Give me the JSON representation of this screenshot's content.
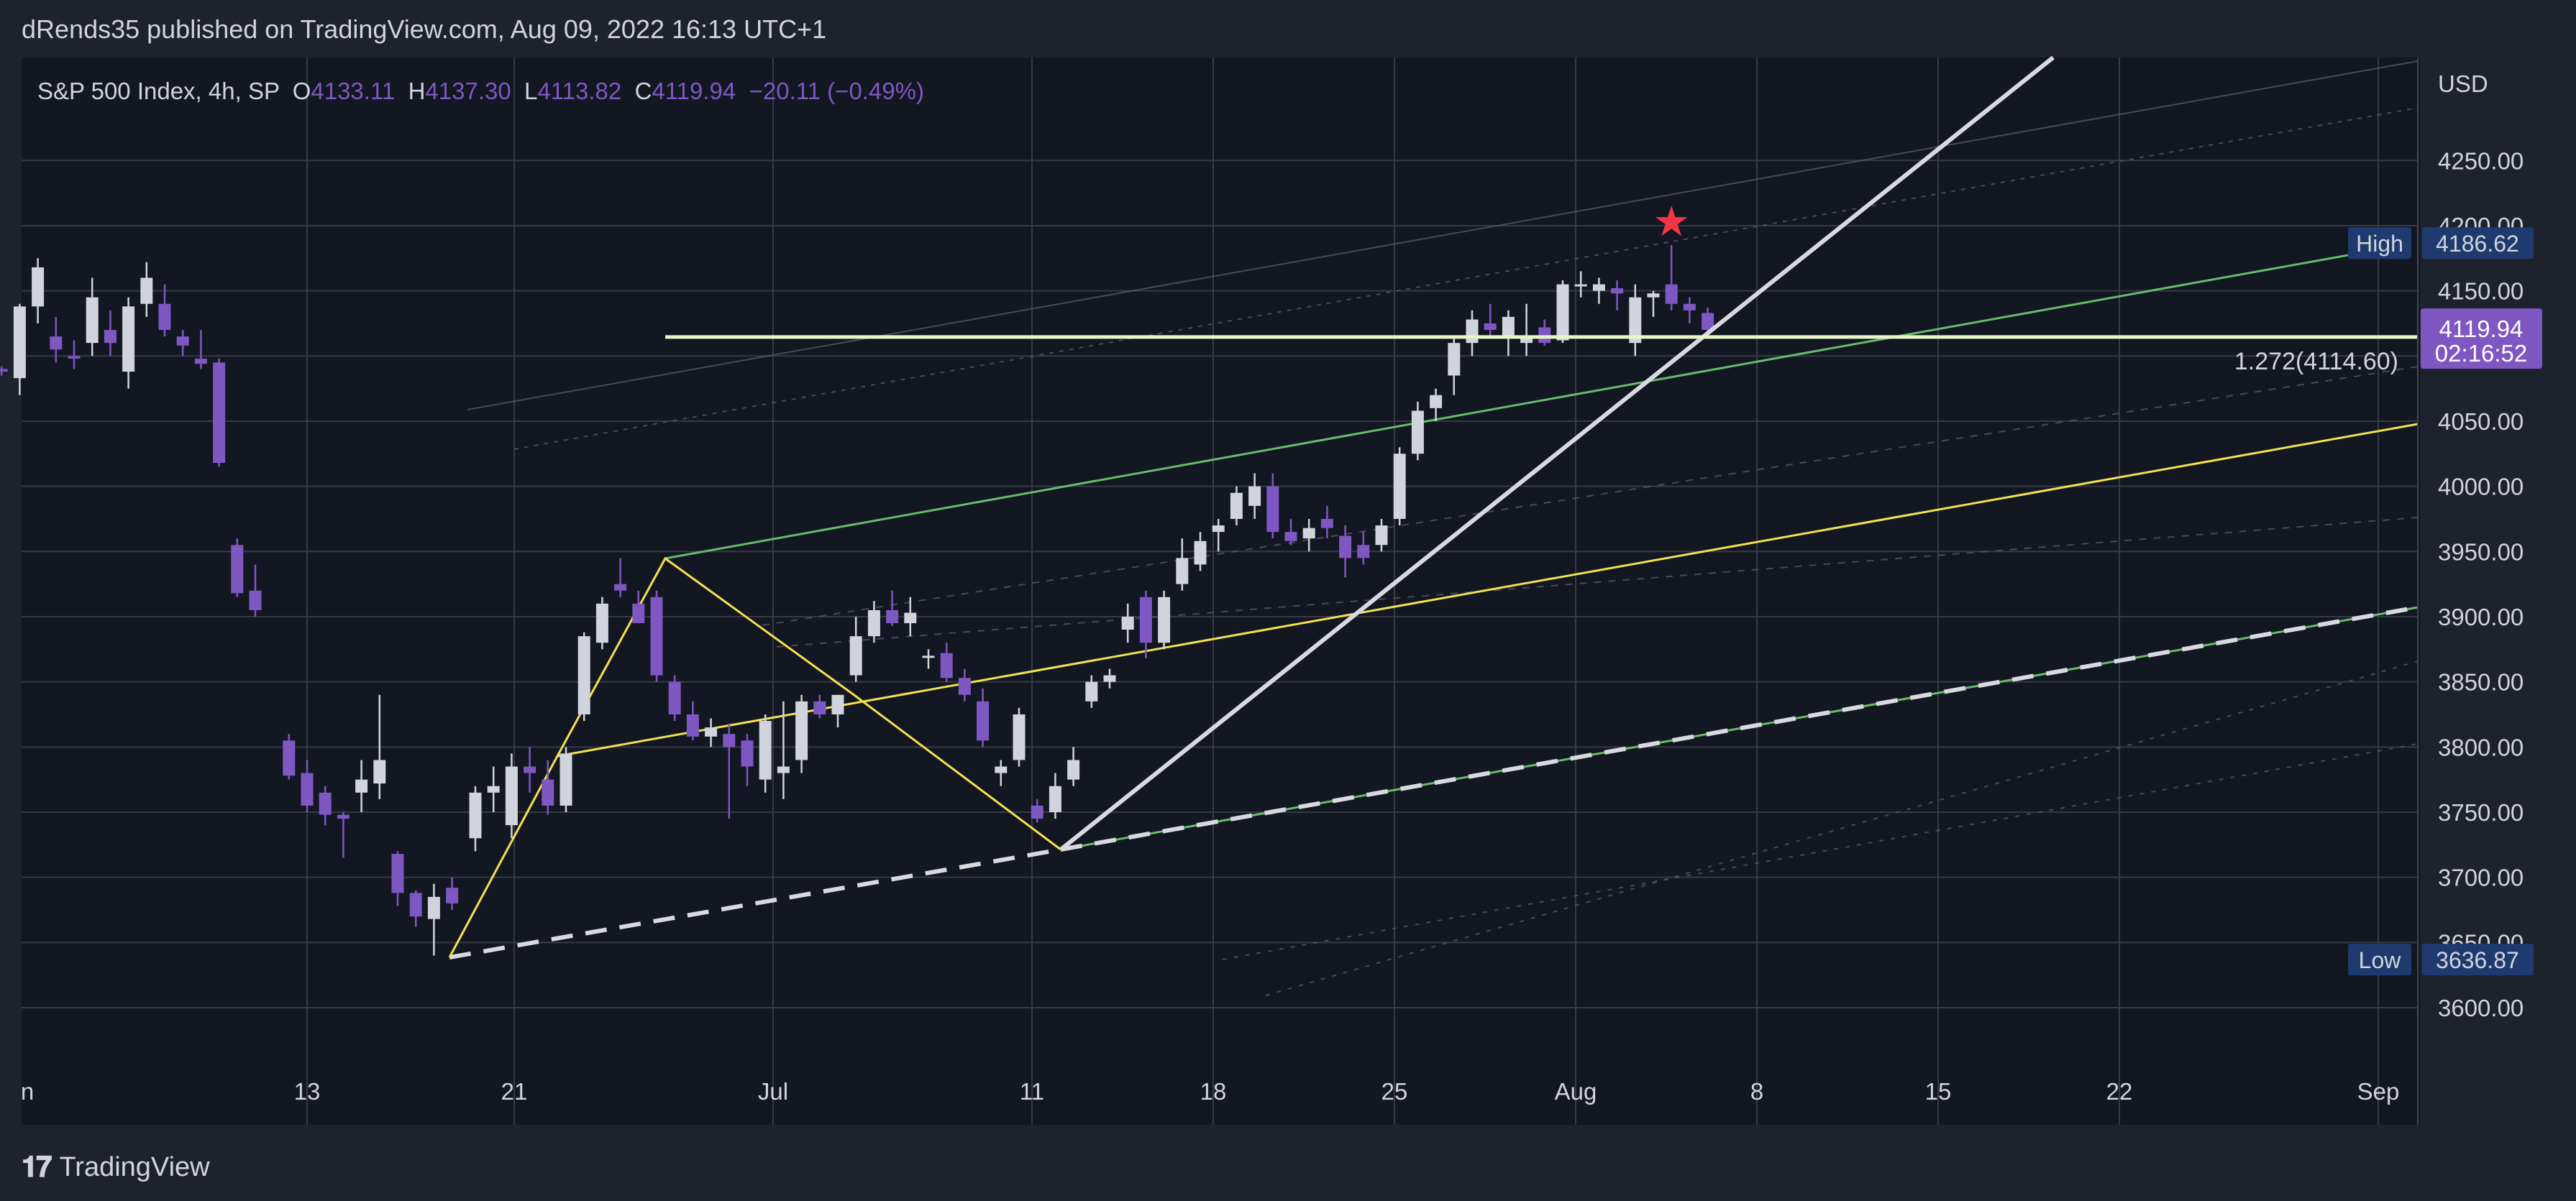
{
  "header": {
    "publisher_text": "dRends35 published on TradingView.com, Aug 09, 2022 16:13 UTC+1"
  },
  "legend": {
    "symbol": "S&P 500 Index, 4h, SP",
    "open_label": "O",
    "open": "4133.11",
    "high_label": "H",
    "high": "4137.30",
    "low_label": "L",
    "low": "4113.82",
    "close_label": "C",
    "close": "4119.94",
    "change": "−20.11 (−0.49%)"
  },
  "footer": {
    "logo_mark": "𝟏𝟕",
    "brand": "TradingView"
  },
  "colors": {
    "background": "#131722",
    "frame": "#1e222d",
    "grid": "#363a45",
    "text": "#d1d4dc",
    "bull": "#d1d4dc",
    "bear": "#7e57c2",
    "yellow": "#f5e050",
    "green": "#66bb6a",
    "white_line": "#d9d9e0",
    "level": "#e8f5c8",
    "star": "#f23645",
    "badge": "#1e3a6e",
    "price_badge": "#7e57c2"
  },
  "chart_data": {
    "type": "candlestick",
    "title": "S&P 500 Index, 4h, SP",
    "currency_label": "USD",
    "y_ticks": [
      "3600.00",
      "3650.00",
      "3700.00",
      "3750.00",
      "3800.00",
      "3850.00",
      "3900.00",
      "3950.00",
      "4000.00",
      "4050.00",
      "4100.00",
      "4150.00",
      "4200.00",
      "4250.00"
    ],
    "ylim": [
      3574,
      4308
    ],
    "x_ticks": [
      {
        "label": "n",
        "day": 1
      },
      {
        "label": "13",
        "day": 13
      },
      {
        "label": "21",
        "day": 21
      },
      {
        "label": "Jul",
        "day": 31
      },
      {
        "label": "11",
        "day": 41
      },
      {
        "label": "18",
        "day": 48
      },
      {
        "label": "25",
        "day": 55
      },
      {
        "label": "Aug",
        "day": 62
      },
      {
        "label": "8",
        "day": 69
      },
      {
        "label": "15",
        "day": 76
      },
      {
        "label": "22",
        "day": 83
      },
      {
        "label": "Sep",
        "day": 93
      }
    ],
    "candles": [
      [
        1.2,
        4090,
        4092,
        4085,
        4088
      ],
      [
        1.9,
        4083,
        4140,
        4070,
        4138
      ],
      [
        2.6,
        4138,
        4175,
        4125,
        4168
      ],
      [
        3.3,
        4115,
        4130,
        4095,
        4105
      ],
      [
        4.0,
        4100,
        4112,
        4090,
        4098
      ],
      [
        4.7,
        4110,
        4160,
        4100,
        4145
      ],
      [
        5.4,
        4120,
        4135,
        4100,
        4110
      ],
      [
        6.1,
        4088,
        4145,
        4075,
        4138
      ],
      [
        6.8,
        4140,
        4172,
        4130,
        4160
      ],
      [
        7.5,
        4140,
        4155,
        4115,
        4120
      ],
      [
        8.2,
        4115,
        4120,
        4100,
        4108
      ],
      [
        8.9,
        4098,
        4120,
        4090,
        4094
      ],
      [
        9.6,
        4095,
        4098,
        4015,
        4018
      ],
      [
        10.3,
        3955,
        3960,
        3915,
        3918
      ],
      [
        11.0,
        3920,
        3940,
        3900,
        3905
      ],
      [
        12.3,
        3805,
        3810,
        3775,
        3778
      ],
      [
        13.0,
        3780,
        3790,
        3750,
        3755
      ],
      [
        13.7,
        3765,
        3770,
        3740,
        3748
      ],
      [
        14.4,
        3748,
        3750,
        3715,
        3745
      ],
      [
        15.1,
        3765,
        3790,
        3750,
        3775
      ],
      [
        15.8,
        3772,
        3840,
        3760,
        3790
      ],
      [
        16.5,
        3718,
        3720,
        3678,
        3688
      ],
      [
        17.2,
        3688,
        3690,
        3662,
        3670
      ],
      [
        17.9,
        3668,
        3695,
        3640,
        3685
      ],
      [
        18.6,
        3692,
        3700,
        3675,
        3680
      ],
      [
        19.5,
        3730,
        3770,
        3720,
        3765
      ],
      [
        20.2,
        3765,
        3785,
        3750,
        3770
      ],
      [
        20.9,
        3740,
        3795,
        3730,
        3785
      ],
      [
        21.6,
        3785,
        3800,
        3765,
        3780
      ],
      [
        22.3,
        3775,
        3790,
        3748,
        3755
      ],
      [
        23.0,
        3755,
        3800,
        3750,
        3795
      ],
      [
        23.7,
        3825,
        3888,
        3820,
        3885
      ],
      [
        24.4,
        3880,
        3915,
        3875,
        3910
      ],
      [
        25.1,
        3925,
        3945,
        3915,
        3920
      ],
      [
        25.8,
        3910,
        3920,
        3895,
        3895
      ],
      [
        26.5,
        3915,
        3920,
        3850,
        3855
      ],
      [
        27.2,
        3850,
        3855,
        3820,
        3825
      ],
      [
        27.9,
        3825,
        3835,
        3805,
        3808
      ],
      [
        28.6,
        3808,
        3822,
        3800,
        3815
      ],
      [
        29.3,
        3810,
        3818,
        3745,
        3800
      ],
      [
        30.0,
        3805,
        3810,
        3770,
        3785
      ],
      [
        30.7,
        3775,
        3825,
        3765,
        3820
      ],
      [
        31.4,
        3780,
        3835,
        3760,
        3785
      ],
      [
        32.1,
        3790,
        3840,
        3780,
        3835
      ],
      [
        32.8,
        3835,
        3840,
        3822,
        3825
      ],
      [
        33.5,
        3825,
        3840,
        3815,
        3840
      ],
      [
        34.2,
        3855,
        3900,
        3850,
        3885
      ],
      [
        34.9,
        3885,
        3912,
        3880,
        3905
      ],
      [
        35.6,
        3905,
        3920,
        3893,
        3895
      ],
      [
        36.3,
        3895,
        3915,
        3885,
        3903
      ],
      [
        37.0,
        3870,
        3875,
        3860,
        3870
      ],
      [
        37.7,
        3872,
        3880,
        3850,
        3853
      ],
      [
        38.4,
        3853,
        3860,
        3835,
        3840
      ],
      [
        39.1,
        3835,
        3845,
        3800,
        3805
      ],
      [
        39.8,
        3780,
        3790,
        3770,
        3785
      ],
      [
        40.5,
        3790,
        3830,
        3785,
        3825
      ],
      [
        41.2,
        3755,
        3760,
        3742,
        3745
      ],
      [
        41.9,
        3750,
        3780,
        3745,
        3770
      ],
      [
        42.6,
        3775,
        3800,
        3770,
        3790
      ],
      [
        43.3,
        3835,
        3855,
        3830,
        3850
      ],
      [
        44.0,
        3850,
        3860,
        3845,
        3855
      ],
      [
        44.7,
        3890,
        3910,
        3880,
        3900
      ],
      [
        45.4,
        3915,
        3920,
        3868,
        3880
      ],
      [
        46.1,
        3880,
        3920,
        3875,
        3915
      ],
      [
        46.8,
        3925,
        3960,
        3920,
        3945
      ],
      [
        47.5,
        3940,
        3965,
        3935,
        3958
      ],
      [
        48.2,
        3965,
        3975,
        3950,
        3970
      ],
      [
        48.9,
        3975,
        4000,
        3970,
        3995
      ],
      [
        49.6,
        3985,
        4010,
        3975,
        4000
      ],
      [
        50.3,
        4000,
        4010,
        3960,
        3965
      ],
      [
        51.0,
        3965,
        3975,
        3955,
        3958
      ],
      [
        51.7,
        3960,
        3975,
        3950,
        3968
      ],
      [
        52.4,
        3975,
        3985,
        3960,
        3968
      ],
      [
        53.1,
        3962,
        3970,
        3930,
        3945
      ],
      [
        53.8,
        3955,
        3965,
        3940,
        3945
      ],
      [
        54.5,
        3955,
        3975,
        3950,
        3970
      ],
      [
        55.2,
        3975,
        4030,
        3970,
        4025
      ],
      [
        55.9,
        4025,
        4065,
        4020,
        4058
      ],
      [
        56.6,
        4060,
        4075,
        4050,
        4070
      ],
      [
        57.3,
        4085,
        4115,
        4070,
        4110
      ],
      [
        58.0,
        4110,
        4135,
        4100,
        4128
      ],
      [
        58.7,
        4125,
        4140,
        4115,
        4120
      ],
      [
        59.4,
        4115,
        4135,
        4100,
        4130
      ],
      [
        60.1,
        4110,
        4140,
        4100,
        4115
      ],
      [
        60.8,
        4122,
        4128,
        4108,
        4110
      ],
      [
        61.5,
        4112,
        4158,
        4110,
        4155
      ],
      [
        62.2,
        4155,
        4165,
        4145,
        4155
      ],
      [
        62.9,
        4150,
        4160,
        4140,
        4155
      ],
      [
        63.6,
        4152,
        4158,
        4135,
        4148
      ],
      [
        64.3,
        4110,
        4155,
        4100,
        4145
      ],
      [
        65.0,
        4145,
        4150,
        4130,
        4148
      ],
      [
        65.7,
        4155,
        4185,
        4135,
        4140
      ],
      [
        66.4,
        4140,
        4145,
        4125,
        4135
      ],
      [
        67.1,
        4133,
        4137,
        4114,
        4120
      ]
    ],
    "drawings": {
      "horizontal_level": 4114.6,
      "fib_label": "1.272(4114.60)",
      "high_label": "High",
      "high_value": "4186.62",
      "low_label": "Low",
      "low_value": "3636.87",
      "last_price": "4119.94",
      "countdown": "02:16:52",
      "star_marker": "★"
    }
  }
}
